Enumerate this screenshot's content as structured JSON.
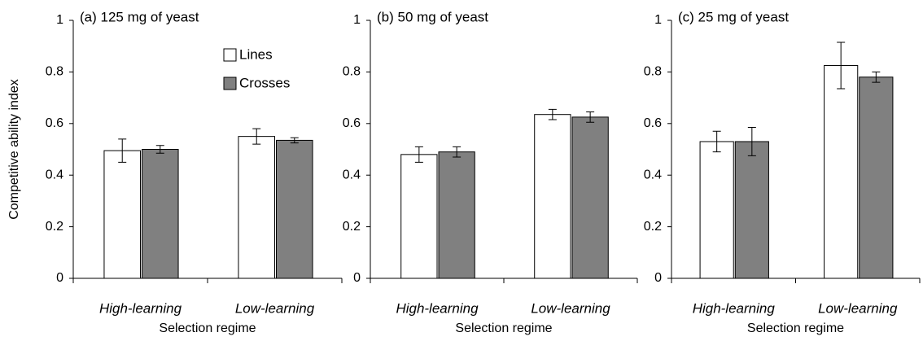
{
  "chart_data": [
    {
      "type": "bar",
      "title": "(a) 125 mg of yeast",
      "ylabel": "Competitive ability index",
      "xlabel": "Selection regime",
      "categories": [
        "High-learning",
        "Low-learning"
      ],
      "series": [
        {
          "name": "Lines",
          "color": "#ffffff",
          "values": [
            0.495,
            0.55
          ],
          "errors": [
            0.045,
            0.03
          ]
        },
        {
          "name": "Crosses",
          "color": "#808080",
          "values": [
            0.5,
            0.535
          ],
          "errors": [
            0.015,
            0.01
          ]
        }
      ],
      "ylim": [
        0,
        1
      ],
      "yticks": [
        0,
        0.2,
        0.4,
        0.6,
        0.8,
        1
      ],
      "legend": "upper right"
    },
    {
      "type": "bar",
      "title": "(b) 50 mg of yeast",
      "xlabel": "Selection regime",
      "categories": [
        "High-learning",
        "Low-learning"
      ],
      "series": [
        {
          "color": "#ffffff",
          "values": [
            0.48,
            0.635
          ],
          "errors": [
            0.03,
            0.02
          ]
        },
        {
          "color": "#808080",
          "values": [
            0.49,
            0.625
          ],
          "errors": [
            0.02,
            0.02
          ]
        }
      ],
      "ylim": [
        0,
        1
      ],
      "yticks": [
        0,
        0.2,
        0.4,
        0.6,
        0.8,
        1
      ]
    },
    {
      "type": "bar",
      "title": "(c) 25 mg of yeast",
      "xlabel": "Selection regime",
      "categories": [
        "High-learning",
        "Low-learning"
      ],
      "series": [
        {
          "color": "#ffffff",
          "values": [
            0.53,
            0.825
          ],
          "errors": [
            0.04,
            0.09
          ]
        },
        {
          "color": "#808080",
          "values": [
            0.53,
            0.78
          ],
          "errors": [
            0.055,
            0.02
          ]
        }
      ],
      "ylim": [
        0,
        1
      ],
      "yticks": [
        0,
        0.2,
        0.4,
        0.6,
        0.8,
        1
      ]
    }
  ]
}
